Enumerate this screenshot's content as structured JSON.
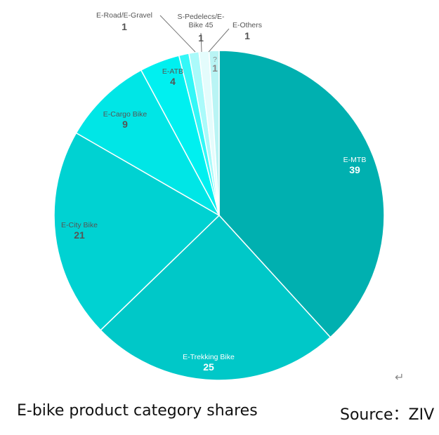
{
  "caption": {
    "title": "E-bike product category shares",
    "source": "Source：ZIV"
  },
  "return_mark": "↵",
  "chart_data": {
    "type": "pie",
    "title": "",
    "slices": [
      {
        "label": "E-MTB",
        "value": 39,
        "value_text": "39",
        "color": "#00b0b0",
        "label_color": "#ffffff"
      },
      {
        "label": "E-Trekking Bike",
        "value": 25,
        "value_text": "25",
        "color": "#00c8c8",
        "label_color": "#ffffff"
      },
      {
        "label": "E-City Bike",
        "value": 21,
        "value_text": "21",
        "color": "#00d2d2",
        "label_color": "#555555"
      },
      {
        "label": "E-Cargo Bike",
        "value": 9,
        "value_text": "9",
        "color": "#00e6e6",
        "label_color": "#555555"
      },
      {
        "label": "E-ATB",
        "value": 4,
        "value_text": "4",
        "color": "#00f0f0",
        "label_color": "#555555"
      },
      {
        "label": "E-Road/E-Gravel",
        "value": 1,
        "value_text": "1",
        "color": "#33f7f7",
        "label_color": "#555555"
      },
      {
        "label": "S-Pedelecs/E-Bike 45",
        "label_lines": [
          "S-Pedelecs/E-",
          "Bike 45"
        ],
        "value": 1,
        "value_text": "1",
        "color": "#aafafa",
        "label_color": "#555555"
      },
      {
        "label": "E-Others",
        "value": 1,
        "value_text": "1",
        "color": "#e4fcfc",
        "label_color": "#555555"
      },
      {
        "label": "?",
        "value": 1,
        "value_text": "1",
        "color": "#b9f4f4",
        "label_color": "#888888"
      }
    ]
  }
}
